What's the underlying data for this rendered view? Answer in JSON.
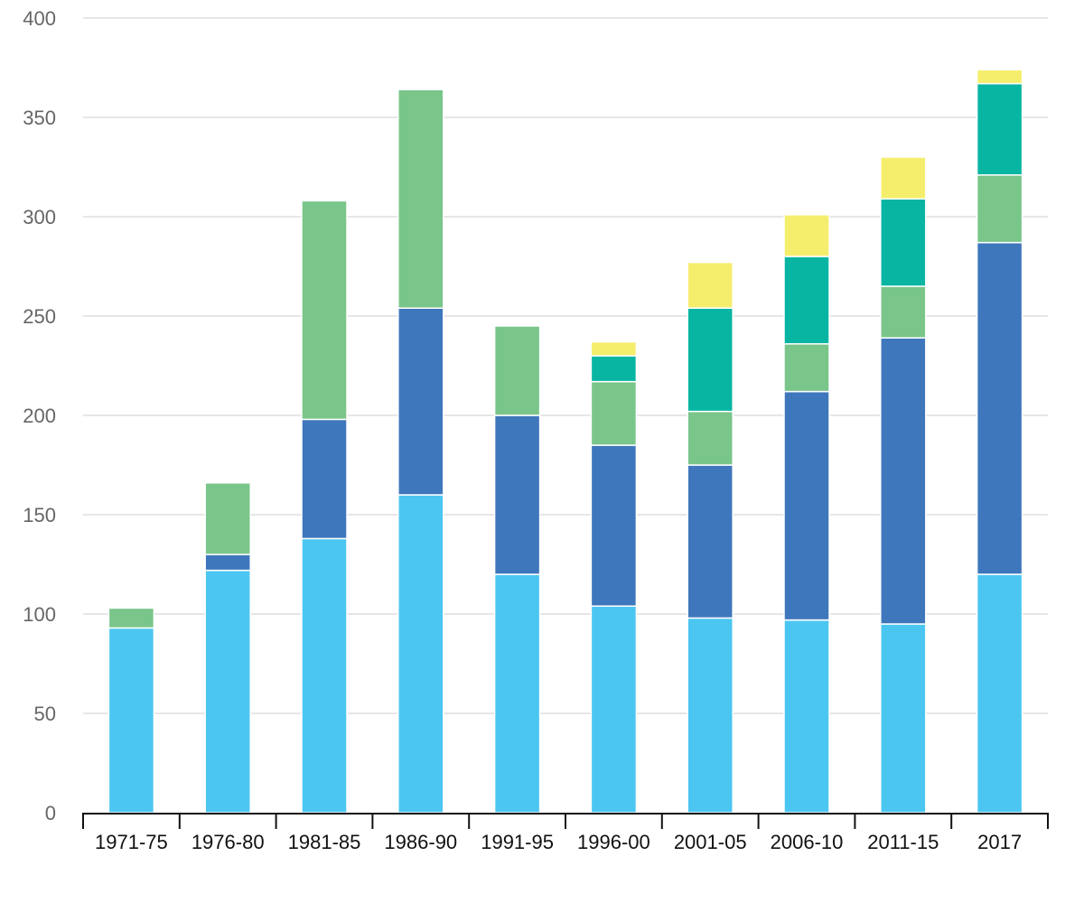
{
  "chart_data": {
    "type": "bar",
    "stacked": true,
    "title": "",
    "xlabel": "",
    "ylabel": "",
    "ylim": [
      0,
      400
    ],
    "yticks": [
      0,
      50,
      100,
      150,
      200,
      250,
      300,
      350,
      400
    ],
    "grid": true,
    "legend": "none",
    "categories": [
      "1971-75",
      "1976-80",
      "1981-85",
      "1986-90",
      "1991-95",
      "1996-00",
      "2001-05",
      "2006-10",
      "2011-15",
      "2017"
    ],
    "series": [
      {
        "color": "#4bc6f1",
        "values": [
          93,
          122,
          138,
          160,
          120,
          104,
          98,
          97,
          95,
          120
        ]
      },
      {
        "color": "#3f77bc",
        "values": [
          0,
          8,
          60,
          94,
          80,
          81,
          77,
          115,
          144,
          167
        ]
      },
      {
        "color": "#79c58a",
        "values": [
          10,
          36,
          110,
          110,
          45,
          32,
          27,
          24,
          26,
          34
        ]
      },
      {
        "color": "#07b5a2",
        "values": [
          0,
          0,
          0,
          0,
          0,
          13,
          52,
          44,
          44,
          46
        ]
      },
      {
        "color": "#f5ee6d",
        "values": [
          0,
          0,
          0,
          0,
          0,
          7,
          23,
          21,
          21,
          7
        ]
      }
    ]
  }
}
